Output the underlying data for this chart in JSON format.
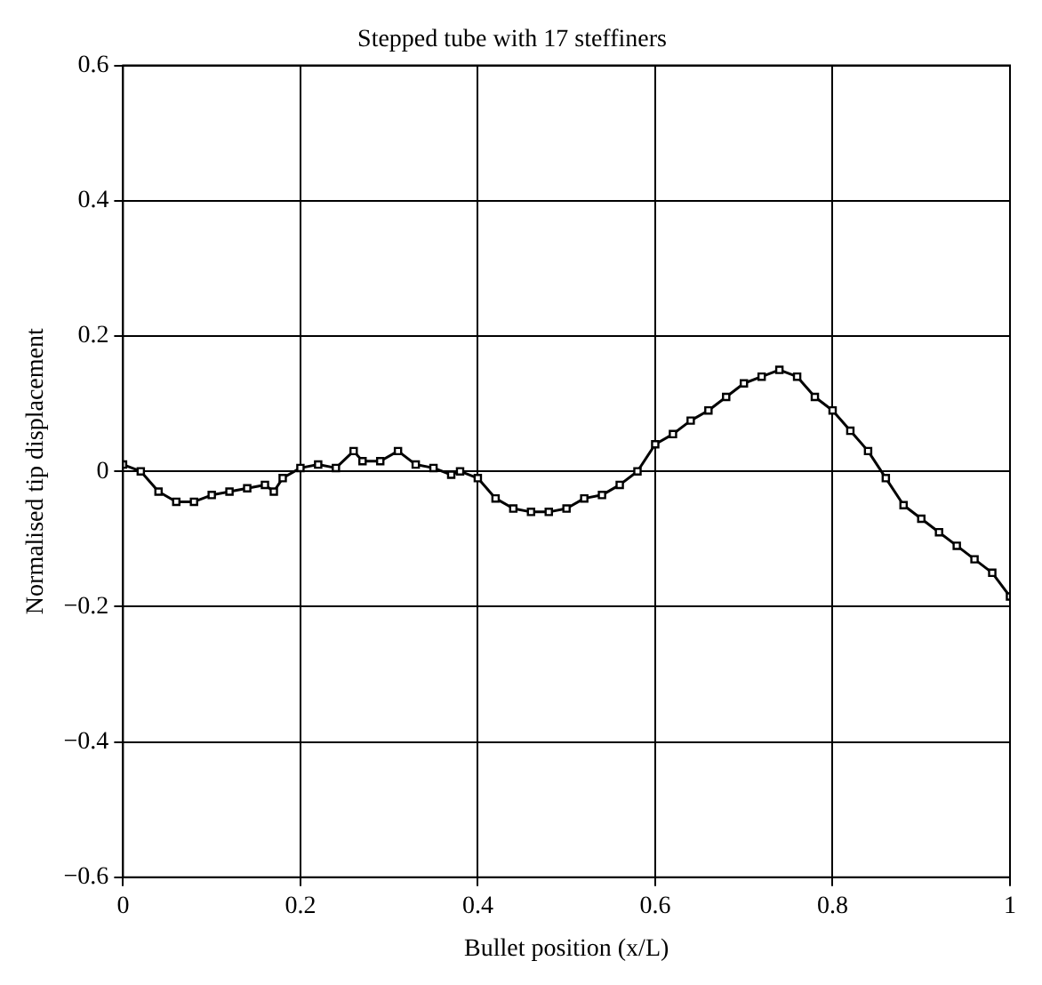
{
  "chart_data": {
    "type": "line",
    "title": "Stepped tube with 17 steffiners",
    "xlabel": "Bullet position (x/L)",
    "ylabel": "Normalised tip displacement",
    "xlim": [
      0,
      1
    ],
    "xticks": [
      0,
      0.2,
      0.4,
      0.6,
      0.8,
      1
    ],
    "ylim": [
      -0.6,
      0.6
    ],
    "yticks": [
      -0.6,
      -0.4,
      -0.2,
      0,
      0.2,
      0.4,
      0.6
    ],
    "grid": true,
    "marker": "square",
    "line_style": "solid",
    "legend": false,
    "series": [
      {
        "color": "#000000",
        "x": [
          0,
          0.02,
          0.04,
          0.06,
          0.08,
          0.1,
          0.12,
          0.14,
          0.16,
          0.17,
          0.18,
          0.2,
          0.22,
          0.24,
          0.26,
          0.27,
          0.29,
          0.31,
          0.33,
          0.35,
          0.37,
          0.38,
          0.4,
          0.42,
          0.44,
          0.46,
          0.48,
          0.5,
          0.52,
          0.54,
          0.56,
          0.58,
          0.6,
          0.62,
          0.64,
          0.66,
          0.68,
          0.7,
          0.72,
          0.74,
          0.76,
          0.78,
          0.8,
          0.82,
          0.84,
          0.86,
          0.88,
          0.9,
          0.92,
          0.94,
          0.96,
          0.98,
          1
        ],
        "values": [
          0.01,
          0,
          -0.03,
          -0.045,
          -0.045,
          -0.035,
          -0.03,
          -0.025,
          -0.02,
          -0.03,
          -0.01,
          0.005,
          0.01,
          0.005,
          0.03,
          0.015,
          0.015,
          0.03,
          0.01,
          0.005,
          -0.005,
          0,
          -0.01,
          -0.04,
          -0.055,
          -0.06,
          -0.06,
          -0.055,
          -0.04,
          -0.035,
          -0.02,
          0,
          0.04,
          0.055,
          0.075,
          0.09,
          0.11,
          0.13,
          0.14,
          0.15,
          0.14,
          0.11,
          0.09,
          0.06,
          0.03,
          -0.01,
          -0.05,
          -0.07,
          -0.09,
          -0.11,
          -0.13,
          -0.15,
          -0.185
        ]
      }
    ]
  }
}
